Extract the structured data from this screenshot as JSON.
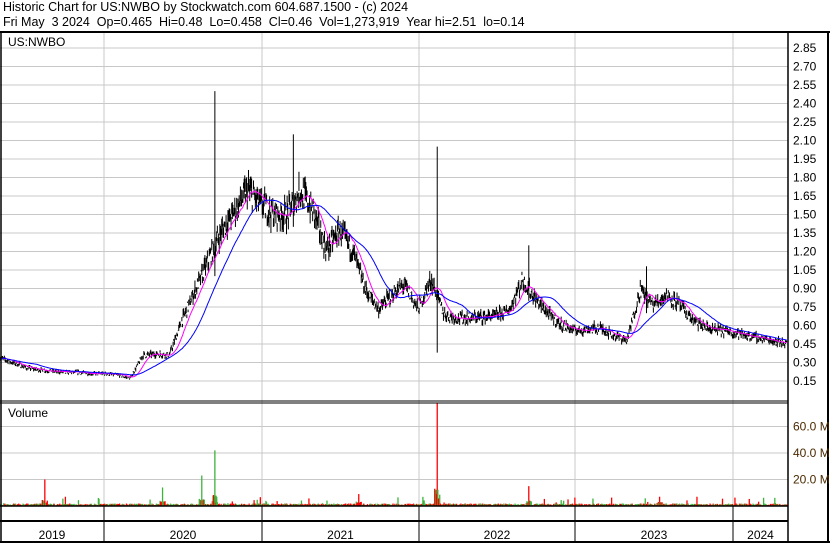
{
  "header": {
    "line1": "Historic Chart for US:NWBO by Stockwatch.com 604.687.1500 - (c) 2024",
    "line2": "Fri May  3 2024  Op=0.465  Hi=0.48  Lo=0.458  Cl=0.46  Vol=1,273,919  Year hi=2.51  lo=0.14"
  },
  "chart_data": {
    "type": "line",
    "symbol_label": "US:NWBO",
    "volume_label": "Volume",
    "price_ticks": [
      "2.85",
      "2.70",
      "2.55",
      "2.40",
      "2.25",
      "2.10",
      "1.95",
      "1.80",
      "1.65",
      "1.50",
      "1.35",
      "1.20",
      "1.05",
      "0.90",
      "0.75",
      "0.60",
      "0.45",
      "0.30",
      "0.15"
    ],
    "volume_ticks": [
      "60.0 M",
      "40.0 M",
      "20.0 M"
    ],
    "year_labels": [
      "2019",
      "2020",
      "2021",
      "2022",
      "2023",
      "2024"
    ],
    "price_ylim": [
      0.0,
      2.95
    ],
    "colors": {
      "price": "#000000",
      "ma_short": "#ff00ff",
      "ma_long": "#0000ff",
      "volume_up": "#3cb43c",
      "volume_down": "#ff0000",
      "grid": "#c8c8c8",
      "tick_label": "#000000",
      "volume_tick_label": "#4a2a00"
    },
    "monthly_close": [
      [
        "2019-05",
        0.34
      ],
      [
        "2019-06",
        0.3
      ],
      [
        "2019-07",
        0.26
      ],
      [
        "2019-08",
        0.24
      ],
      [
        "2019-09",
        0.23
      ],
      [
        "2019-10",
        0.22
      ],
      [
        "2019-11",
        0.22
      ],
      [
        "2019-12",
        0.21
      ],
      [
        "2020-01",
        0.21
      ],
      [
        "2020-02",
        0.2
      ],
      [
        "2020-03",
        0.17
      ],
      [
        "2020-04",
        0.36
      ],
      [
        "2020-05",
        0.37
      ],
      [
        "2020-06",
        0.36
      ],
      [
        "2020-07",
        0.65
      ],
      [
        "2020-08",
        0.89
      ],
      [
        "2020-09",
        1.13
      ],
      [
        "2020-10",
        1.37
      ],
      [
        "2020-11",
        1.53
      ],
      [
        "2020-12",
        1.7
      ],
      [
        "2021-01",
        1.58
      ],
      [
        "2021-02",
        1.5
      ],
      [
        "2021-03",
        1.5
      ],
      [
        "2021-04",
        1.7
      ],
      [
        "2021-05",
        1.53
      ],
      [
        "2021-06",
        1.21
      ],
      [
        "2021-07",
        1.37
      ],
      [
        "2021-08",
        1.21
      ],
      [
        "2021-09",
        0.89
      ],
      [
        "2021-10",
        0.73
      ],
      [
        "2021-11",
        0.85
      ],
      [
        "2021-12",
        0.93
      ],
      [
        "2022-01",
        0.73
      ],
      [
        "2022-02",
        0.97
      ],
      [
        "2022-03",
        0.69
      ],
      [
        "2022-04",
        0.66
      ],
      [
        "2022-05",
        0.66
      ],
      [
        "2022-06",
        0.67
      ],
      [
        "2022-07",
        0.68
      ],
      [
        "2022-08",
        0.73
      ],
      [
        "2022-09",
        0.97
      ],
      [
        "2022-10",
        0.81
      ],
      [
        "2022-11",
        0.69
      ],
      [
        "2022-12",
        0.6
      ],
      [
        "2023-01",
        0.56
      ],
      [
        "2023-02",
        0.57
      ],
      [
        "2023-03",
        0.58
      ],
      [
        "2023-04",
        0.52
      ],
      [
        "2023-05",
        0.48
      ],
      [
        "2023-06",
        0.89
      ],
      [
        "2023-07",
        0.77
      ],
      [
        "2023-08",
        0.85
      ],
      [
        "2023-09",
        0.77
      ],
      [
        "2023-10",
        0.64
      ],
      [
        "2023-11",
        0.58
      ],
      [
        "2023-12",
        0.56
      ],
      [
        "2024-01",
        0.55
      ],
      [
        "2024-02",
        0.52
      ],
      [
        "2024-03",
        0.5
      ],
      [
        "2024-04",
        0.48
      ],
      [
        "2024-05",
        0.46
      ]
    ],
    "price_spikes": [
      [
        "2020-09",
        2.5,
        1.0
      ],
      [
        "2021-03",
        2.15,
        1.4
      ],
      [
        "2022-02",
        2.05,
        0.38
      ],
      [
        "2022-09",
        1.25,
        0.8
      ],
      [
        "2023-06",
        1.08,
        0.7
      ]
    ],
    "volume_spikes_millions": [
      [
        "2019-08",
        20
      ],
      [
        "2020-05",
        14
      ],
      [
        "2020-08",
        23
      ],
      [
        "2020-09",
        42
      ],
      [
        "2022-02",
        78
      ],
      [
        "2022-09",
        15
      ],
      [
        "2021-08",
        9
      ],
      [
        "2023-07",
        7
      ]
    ]
  }
}
